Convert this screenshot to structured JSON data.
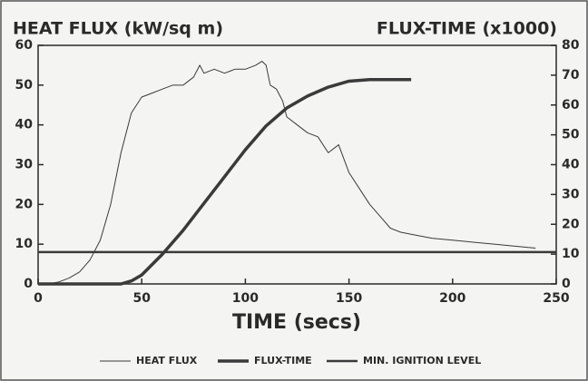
{
  "chart_data": {
    "type": "line",
    "title_left": "HEAT FLUX (kW/sq m)",
    "title_right": "FLUX-TIME (x1000)",
    "xlabel": "TIME (secs)",
    "xlim": [
      0,
      250
    ],
    "xticks": [
      0,
      50,
      100,
      150,
      200,
      250
    ],
    "ylim": [
      0,
      60
    ],
    "yticks": [
      0,
      10,
      20,
      30,
      40,
      50,
      60
    ],
    "y2lim": [
      0,
      80
    ],
    "y2ticks": [
      0,
      10,
      20,
      30,
      40,
      50,
      60,
      70,
      80
    ],
    "series": [
      {
        "name": "HEAT FLUX",
        "color": "#3a3a3a",
        "linewidth": 1,
        "x": [
          0,
          5,
          10,
          15,
          20,
          25,
          30,
          35,
          40,
          45,
          50,
          55,
          60,
          65,
          70,
          75,
          78,
          80,
          85,
          90,
          95,
          100,
          105,
          108,
          110,
          112,
          115,
          118,
          120,
          125,
          130,
          135,
          140,
          145,
          150,
          155,
          160,
          165,
          170,
          175,
          180,
          190,
          200,
          210,
          220,
          230,
          240
        ],
        "values": [
          0,
          0,
          0.5,
          1.5,
          3,
          6,
          11,
          20,
          33,
          43,
          47,
          48,
          49,
          50,
          50,
          52,
          55,
          53,
          54,
          53,
          54,
          54,
          55,
          56,
          55,
          50,
          49,
          46,
          42,
          40,
          38,
          37,
          33,
          35,
          28,
          24,
          20,
          17,
          14,
          13,
          12.5,
          11.5,
          11,
          10.5,
          10,
          9.5,
          9
        ]
      },
      {
        "name": "FLUX-TIME",
        "color": "#3a3a3a",
        "linewidth": 3.5,
        "axis": "y2",
        "x": [
          0,
          40,
          45,
          50,
          60,
          70,
          80,
          90,
          100,
          110,
          120,
          130,
          140,
          150,
          160,
          170,
          180
        ],
        "values": [
          0,
          0,
          1,
          3,
          10,
          18,
          27,
          36,
          45,
          53,
          59,
          63,
          66,
          68,
          68.5,
          68.5,
          68.5
        ]
      },
      {
        "name": "MIN. IGNITION LEVEL",
        "color": "#3a3a3a",
        "linewidth": 2.5,
        "x": [
          0,
          250
        ],
        "values": [
          8,
          8
        ]
      }
    ]
  }
}
